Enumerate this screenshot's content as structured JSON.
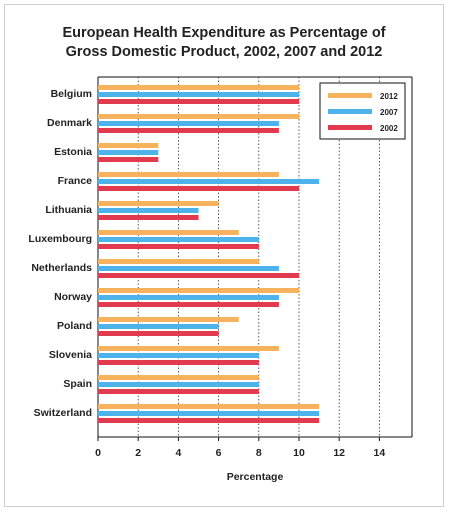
{
  "chart_data": {
    "type": "bar",
    "orientation": "horizontal",
    "title_lines": [
      "European Health Expenditure as Percentage of",
      "Gross Domestic Product, 2002, 2007 and 2012"
    ],
    "xlabel": "Percentage",
    "ylabel": "",
    "xlim": [
      0,
      16
    ],
    "xticks": [
      0,
      2,
      4,
      6,
      8,
      10,
      12,
      14
    ],
    "grid": "vertical dotted",
    "legend_position": "top-right",
    "categories": [
      "Belgium",
      "Denmark",
      "Estonia",
      "France",
      "Lithuania",
      "Luxembourg",
      "Netherlands",
      "Norway",
      "Poland",
      "Slovenia",
      "Spain",
      "Switzerland"
    ],
    "series": [
      {
        "name": "2012",
        "color": "#f7b25e",
        "values": [
          10,
          10,
          3,
          9,
          6,
          7,
          8,
          10,
          7,
          9,
          8,
          11
        ]
      },
      {
        "name": "2007",
        "color": "#4db3ea",
        "values": [
          10,
          9,
          3,
          11,
          5,
          8,
          9,
          9,
          6,
          8,
          8,
          11
        ]
      },
      {
        "name": "2002",
        "color": "#e23a4e",
        "values": [
          10,
          9,
          3,
          10,
          5,
          8,
          10,
          9,
          6,
          8,
          8,
          11
        ]
      }
    ]
  }
}
